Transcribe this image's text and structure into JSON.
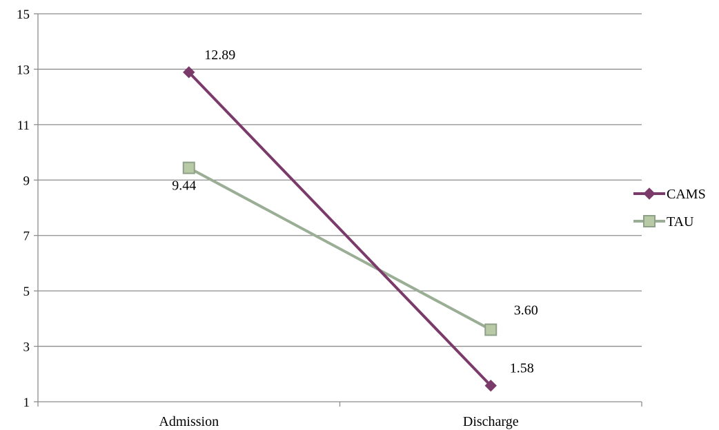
{
  "chart_data": {
    "type": "line",
    "categories": [
      "Admission",
      "Discharge"
    ],
    "series": [
      {
        "name": "CAMS",
        "values": [
          12.89,
          1.58
        ],
        "labels": [
          "12.89",
          "1.58"
        ],
        "color": "#7b3b6a",
        "marker": "diamond"
      },
      {
        "name": "TAU",
        "values": [
          9.44,
          3.6
        ],
        "labels": [
          "9.44",
          "3.60"
        ],
        "color": "#9aae96",
        "marker": "square",
        "marker_fill": "#b8c9a6",
        "marker_stroke": "#8fa08a"
      }
    ],
    "yticks": [
      "1",
      "3",
      "5",
      "7",
      "9",
      "11",
      "13",
      "15"
    ],
    "ylim": [
      1,
      15
    ],
    "grid": true,
    "legend_position": "right",
    "title": "",
    "xlabel": "",
    "ylabel": ""
  }
}
